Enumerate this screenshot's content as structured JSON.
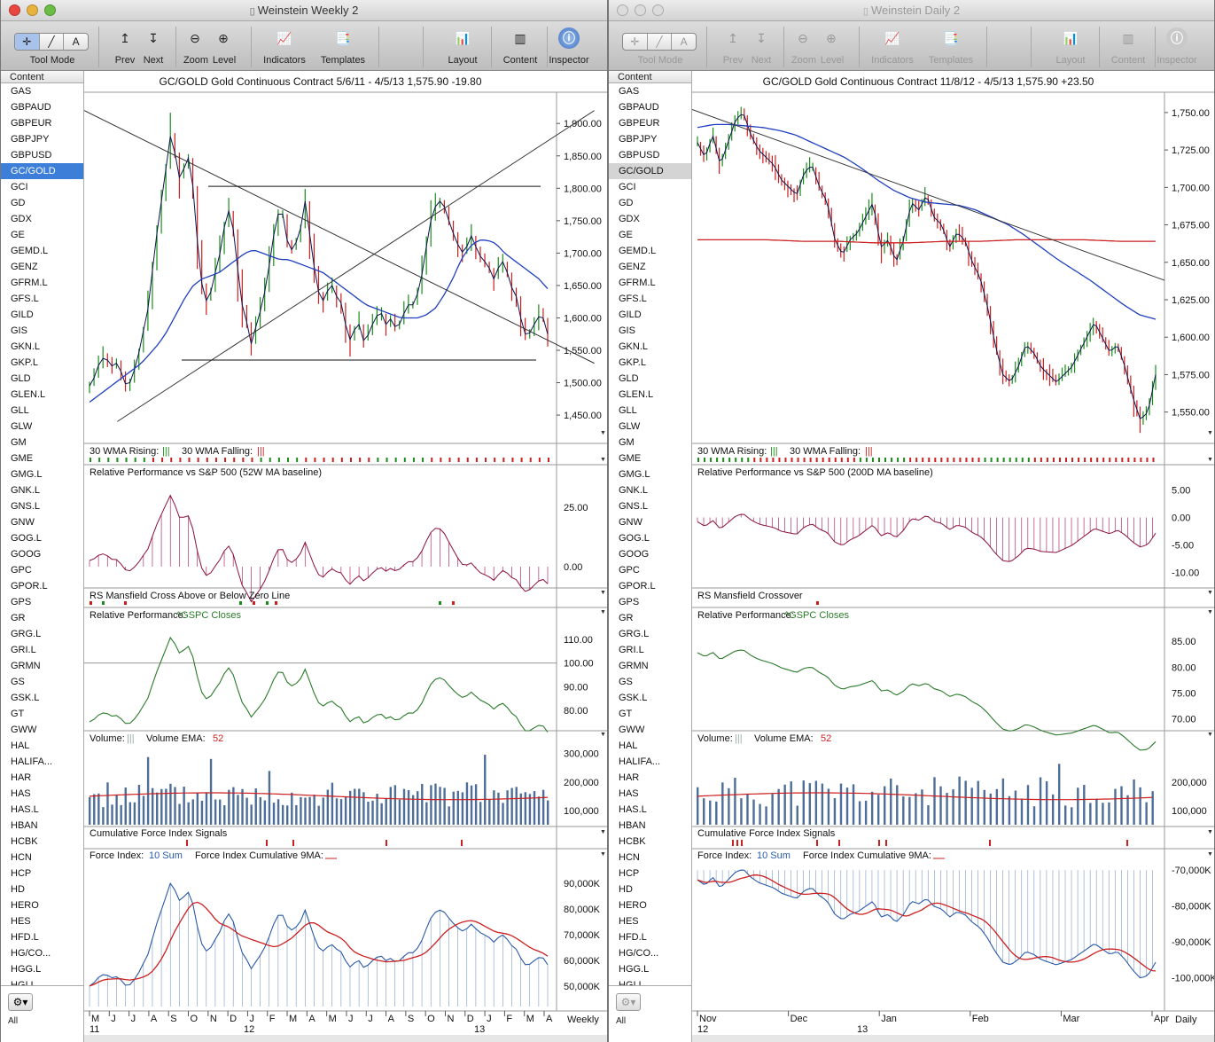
{
  "colors": {
    "accent_blue": "#1f3fbf",
    "ma_red": "#cc1f1f",
    "up_green": "#1a8c1a",
    "down_red": "#cc1f1f",
    "selection": "#3d7fd8"
  },
  "symbols": [
    "GAS",
    "GBPAUD",
    "GBPEUR",
    "GBPJPY",
    "GBPUSD",
    "GC/GOLD",
    "GCI",
    "GD",
    "GDX",
    "GE",
    "GEMD.L",
    "GENZ",
    "GFRM.L",
    "GFS.L",
    "GILD",
    "GIS",
    "GKN.L",
    "GKP.L",
    "GLD",
    "GLEN.L",
    "GLL",
    "GLW",
    "GM",
    "GME",
    "GMG.L",
    "GNK.L",
    "GNS.L",
    "GNW",
    "GOG.L",
    "GOOG",
    "GPC",
    "GPOR.L",
    "GPS",
    "GR",
    "GRG.L",
    "GRI.L",
    "GRMN",
    "GS",
    "GSK.L",
    "GT",
    "GWW",
    "HAL",
    "HALIFA...",
    "HAR",
    "HAS",
    "HAS.L",
    "HBAN",
    "HCBK",
    "HCN",
    "HCP",
    "HD",
    "HERO",
    "HES",
    "HFD.L",
    "HG/CO...",
    "HGG.L",
    "HGI.L"
  ],
  "windows": [
    {
      "id": "w1",
      "title": "Weinstein Weekly 2",
      "active": true,
      "selected_symbol": "GC/GOLD",
      "toolbar": {
        "tool_mode": "Tool Mode",
        "prev": "Prev",
        "next": "Next",
        "zoom": "Zoom",
        "level": "Level",
        "indicators": "Indicators",
        "templates": "Templates",
        "layout": "Layout",
        "content": "Content",
        "inspector": "Inspector"
      },
      "sidebar_header": "Content",
      "sidebar_all": "All",
      "header": {
        "symbol": "GC/GOLD",
        "name": "Gold Continuous Contract",
        "range": "5/6/11 - 4/5/13",
        "price": "1,575.90",
        "change": "-19.80"
      },
      "panes": {
        "wma": {
          "rising": "30 WMA Rising:",
          "falling": "30 WMA Falling:"
        },
        "rel_perf_sp": {
          "title": "Relative Performance vs S&P 500 (52W MA baseline)",
          "ticks": [
            "25.00",
            "0.00"
          ]
        },
        "rs_mansfield": {
          "title": "RS Mansfield Cross Above or Below Zero Line"
        },
        "rel_perf_gspc": {
          "title": "Relative Performance:",
          "series": "^GSPC Closes",
          "ticks": [
            "110.00",
            "100.00",
            "90.00",
            "80.00"
          ]
        },
        "volume": {
          "title": "Volume:",
          "ema_label": "Volume EMA:",
          "ema_value": "52",
          "ticks": [
            "300,000",
            "200,000",
            "100,000"
          ]
        },
        "cfi_signals": {
          "title": "Cumulative Force Index Signals"
        },
        "force_index": {
          "title": "Force Index:",
          "sum": "10 Sum",
          "cum": "Force Index Cumulative 9MA:",
          "ticks": [
            "90,000K",
            "80,000K",
            "70,000K",
            "60,000K",
            "50,000K"
          ]
        }
      },
      "price_ticks": [
        "1,900.00",
        "1,850.00",
        "1,800.00",
        "1,750.00",
        "1,700.00",
        "1,650.00",
        "1,600.00",
        "1,550.00",
        "1,500.00",
        "1,450.00"
      ],
      "x_months": [
        "M",
        "J",
        "J",
        "A",
        "S",
        "O",
        "N",
        "D",
        "J",
        "F",
        "M",
        "A",
        "M",
        "J",
        "J",
        "A",
        "S",
        "O",
        "N",
        "D",
        "J",
        "F",
        "M",
        "A"
      ],
      "x_years": [
        "11",
        "12",
        "13"
      ],
      "period": "Weekly"
    },
    {
      "id": "w2",
      "title": "Weinstein Daily 2",
      "active": false,
      "selected_symbol": "GC/GOLD",
      "toolbar": {
        "tool_mode": "Tool Mode",
        "prev": "Prev",
        "next": "Next",
        "zoom": "Zoom",
        "level": "Level",
        "indicators": "Indicators",
        "templates": "Templates",
        "layout": "Layout",
        "content": "Content",
        "inspector": "Inspector"
      },
      "sidebar_header": "Content",
      "sidebar_all": "All",
      "header": {
        "symbol": "GC/GOLD",
        "name": "Gold Continuous Contract",
        "range": "11/8/12 - 4/5/13",
        "price": "1,575.90",
        "change": "+23.50"
      },
      "panes": {
        "wma": {
          "rising": "30 WMA Rising:",
          "falling": "30 WMA Falling:"
        },
        "rel_perf_sp": {
          "title": "Relative Performance vs S&P 500 (200D MA baseline)",
          "ticks": [
            "5.00",
            "0.00",
            "-5.00",
            "-10.00"
          ]
        },
        "rs_mansfield": {
          "title": "RS Mansfield Crossover"
        },
        "rel_perf_gspc": {
          "title": "Relative Performance:",
          "series": "^GSPC Closes",
          "ticks": [
            "85.00",
            "80.00",
            "75.00",
            "70.00"
          ]
        },
        "volume": {
          "title": "Volume:",
          "ema_label": "Volume EMA:",
          "ema_value": "52",
          "ticks": [
            "200,000",
            "100,000"
          ]
        },
        "cfi_signals": {
          "title": "Cumulative Force Index Signals"
        },
        "force_index": {
          "title": "Force Index:",
          "sum": "10 Sum",
          "cum": "Force Index Cumulative 9MA:",
          "ticks": [
            "-70,000K",
            "-80,000K",
            "-90,000K",
            "-100,000K"
          ]
        }
      },
      "price_ticks": [
        "1,750.00",
        "1,725.00",
        "1,700.00",
        "1,675.00",
        "1,650.00",
        "1,625.00",
        "1,600.00",
        "1,575.00",
        "1,550.00"
      ],
      "x_months": [
        "Nov",
        "Dec",
        "Jan",
        "Feb",
        "Mar",
        "Apr"
      ],
      "x_years": [
        "12",
        "13"
      ],
      "period": "Daily"
    }
  ],
  "chart_data": [
    {
      "type": "line",
      "title": "GC/GOLD Gold Continuous Contract (Weekly)",
      "ylim": [
        1420,
        1940
      ],
      "close": [
        1495,
        1510,
        1535,
        1540,
        1525,
        1530,
        1515,
        1490,
        1510,
        1540,
        1580,
        1620,
        1700,
        1760,
        1820,
        1880,
        1850,
        1800,
        1860,
        1820,
        1720,
        1640,
        1620,
        1660,
        1690,
        1740,
        1770,
        1720,
        1630,
        1600,
        1560,
        1590,
        1620,
        1660,
        1720,
        1760,
        1760,
        1700,
        1710,
        1730,
        1780,
        1720,
        1660,
        1620,
        1640,
        1650,
        1630,
        1620,
        1560,
        1580,
        1590,
        1560,
        1580,
        1600,
        1610,
        1590,
        1600,
        1580,
        1600,
        1620,
        1620,
        1640,
        1680,
        1740,
        1770,
        1780,
        1770,
        1740,
        1720,
        1700,
        1710,
        1730,
        1700,
        1690,
        1680,
        1660,
        1680,
        1690,
        1650,
        1640,
        1600,
        1570,
        1580,
        1600,
        1605,
        1575
      ],
      "ma30": [
        1470,
        1480,
        1490,
        1500,
        1510,
        1520,
        1530,
        1545,
        1560,
        1580,
        1605,
        1630,
        1650,
        1660,
        1665,
        1670,
        1680,
        1690,
        1700,
        1705,
        1700,
        1695,
        1690,
        1690,
        1685,
        1680,
        1675,
        1670,
        1660,
        1650,
        1640,
        1630,
        1620,
        1615,
        1610,
        1605,
        1600,
        1600,
        1600,
        1605,
        1615,
        1635,
        1660,
        1690,
        1710,
        1720,
        1720,
        1715,
        1700,
        1690,
        1680,
        1670,
        1660,
        1645
      ],
      "trendlines": [
        {
          "from": [
            0,
            1920
          ],
          "to": [
            108,
            1530
          ]
        },
        {
          "from": [
            7,
            1440
          ],
          "to": [
            108,
            1920
          ]
        }
      ],
      "levels": [
        1803,
        1535
      ]
    },
    {
      "type": "line",
      "title": "GC/GOLD Gold Continuous Contract (Daily)",
      "ylim": [
        1535,
        1760
      ],
      "close": [
        1730,
        1720,
        1735,
        1715,
        1730,
        1745,
        1750,
        1735,
        1725,
        1720,
        1715,
        1705,
        1700,
        1695,
        1710,
        1715,
        1700,
        1690,
        1665,
        1655,
        1665,
        1670,
        1680,
        1690,
        1660,
        1665,
        1650,
        1665,
        1690,
        1685,
        1695,
        1680,
        1675,
        1660,
        1670,
        1665,
        1650,
        1640,
        1620,
        1595,
        1575,
        1570,
        1580,
        1595,
        1590,
        1580,
        1575,
        1570,
        1575,
        1580,
        1590,
        1600,
        1610,
        1600,
        1590,
        1595,
        1580,
        1560,
        1545,
        1550,
        1575
      ],
      "ma30": [
        1740,
        1742,
        1742,
        1741,
        1740,
        1738,
        1735,
        1730,
        1725,
        1720,
        1713,
        1705,
        1698,
        1693,
        1690,
        1689,
        1688,
        1685,
        1680,
        1675,
        1668,
        1660,
        1652,
        1645,
        1638,
        1630,
        1622,
        1615,
        1612
      ],
      "ma200": [
        1665,
        1665,
        1665,
        1664,
        1664,
        1663,
        1663,
        1664,
        1664,
        1665,
        1665,
        1665,
        1664,
        1664
      ],
      "trendlines": [
        {
          "from": [
            0,
            1752
          ],
          "to": [
            100,
            1638
          ]
        }
      ]
    }
  ]
}
